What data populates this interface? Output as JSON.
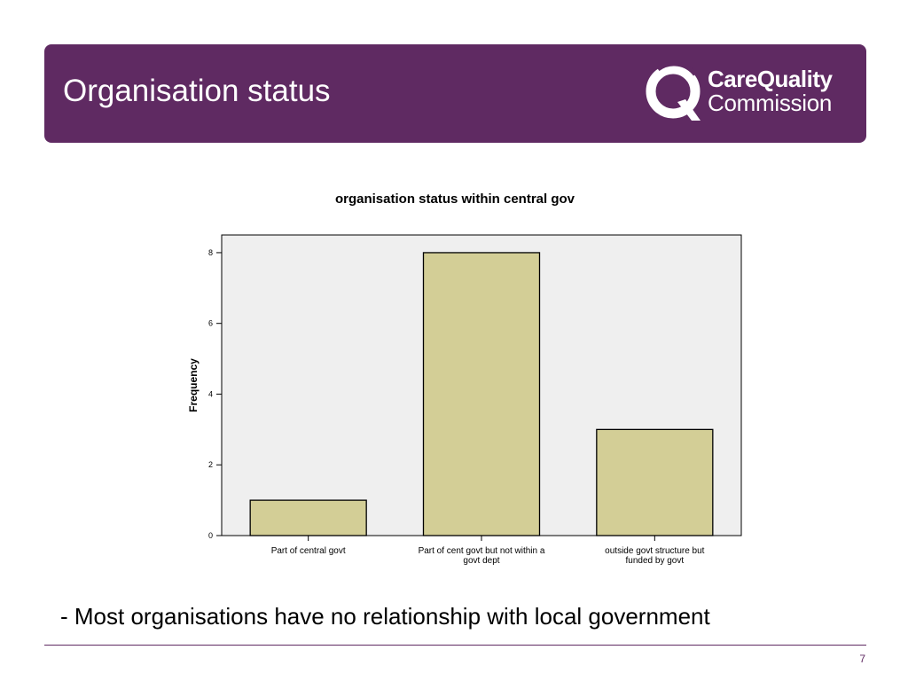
{
  "slide": {
    "title": "Organisation status",
    "bullet": "- Most organisations have no relationship with local government",
    "page_number": "7"
  },
  "logo": {
    "line1": "CareQuality",
    "line2": "Commission",
    "icon": "cqc-q-logo-icon"
  },
  "colors": {
    "header_bg": "#5f2a62",
    "bar_fill": "#d3ce96",
    "plot_bg": "#efefef"
  },
  "chart_data": {
    "type": "bar",
    "title": "organisation status within central gov",
    "xlabel": "",
    "ylabel": "Frequency",
    "categories": [
      "Part of central govt",
      "Part of cent govt but not within a govt dept",
      "outside govt structure but funded by govt"
    ],
    "category_lines": [
      [
        "Part of central govt"
      ],
      [
        "Part of cent govt but not within a",
        "govt dept"
      ],
      [
        "outside govt structure but",
        "funded by govt"
      ]
    ],
    "values": [
      1,
      8,
      3
    ],
    "ylim": [
      0,
      8.5
    ],
    "yticks": [
      0,
      2,
      4,
      6,
      8
    ],
    "grid": false
  }
}
